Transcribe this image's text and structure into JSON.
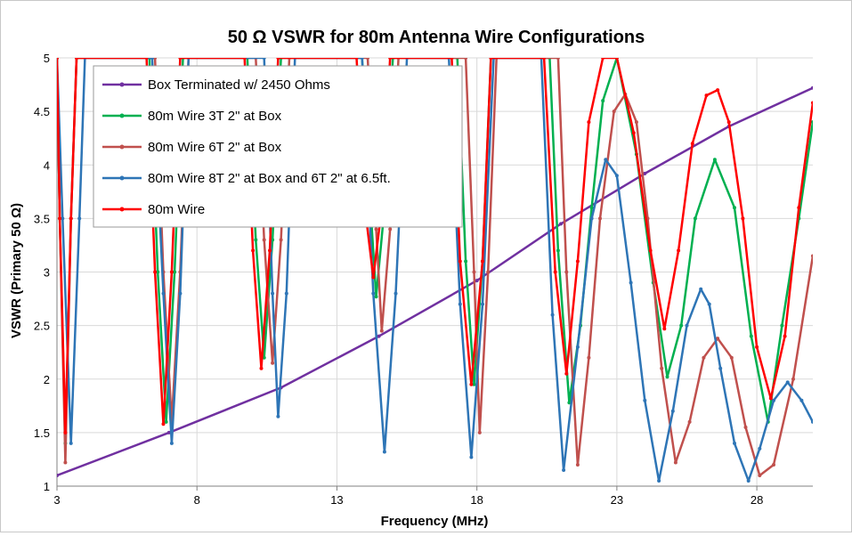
{
  "chart_data": {
    "type": "line",
    "title": "50 Ω VSWR for 80m Antenna Wire Configurations",
    "xlabel": "Frequency (MHz)",
    "ylabel": "VSWR  (Primary 50 Ω)",
    "xlim": [
      3,
      30
    ],
    "ylim": [
      1,
      5
    ],
    "x_ticks": [
      3,
      8,
      13,
      18,
      23,
      28
    ],
    "x_tick_labels": [
      "3",
      "8",
      "13",
      "18",
      "23",
      "28"
    ],
    "y_ticks": [
      1,
      1.5,
      2,
      2.5,
      3,
      3.5,
      4,
      4.5,
      5
    ],
    "y_tick_labels": [
      "1",
      "1.5",
      "2",
      "2.5",
      "3",
      "3.5",
      "4",
      "4.5",
      "5"
    ],
    "grid": true,
    "legend_position": "top-left",
    "series": [
      {
        "name": "Box Terminated w/ 2450 Ohms",
        "color": "#7030a0",
        "x": [
          3,
          7,
          11,
          14.5,
          18,
          21,
          24,
          27,
          30
        ],
        "y": [
          1.1,
          1.5,
          1.92,
          2.4,
          2.92,
          3.45,
          3.92,
          4.36,
          4.72
        ]
      },
      {
        "name": "80m Wire 3T 2\" at Box",
        "color": "#00b050",
        "x": [
          3,
          3.1,
          3.3,
          3.5,
          3.7,
          6.3,
          6.6,
          6.9,
          7.2,
          7.5,
          9.8,
          10.1,
          10.4,
          10.7,
          11,
          13.9,
          14.2,
          14.4,
          14.7,
          15,
          17.3,
          17.6,
          17.9,
          18.2,
          18.5,
          20.6,
          20.9,
          21.3,
          21.7,
          22.1,
          22.5,
          23,
          23.7,
          24.3,
          24.8,
          25.3,
          25.8,
          26.5,
          27.2,
          27.8,
          28.4,
          28.9,
          29.5,
          30
        ],
        "y": [
          5,
          3.5,
          1.4,
          3.5,
          5,
          5,
          3,
          1.6,
          3,
          5,
          5,
          3.3,
          2.2,
          3.3,
          5,
          5,
          3.6,
          2.77,
          3.6,
          5,
          5,
          3.1,
          1.95,
          3.1,
          5,
          5,
          3.2,
          1.78,
          2.5,
          3.6,
          4.6,
          5,
          4.1,
          2.9,
          2.02,
          2.5,
          3.5,
          4.05,
          3.6,
          2.4,
          1.6,
          2.5,
          3.5,
          4.4
        ]
      },
      {
        "name": "80m Wire 6T 2\" at Box",
        "color": "#c0504d",
        "x": [
          3,
          3.1,
          3.3,
          3.5,
          3.7,
          6.5,
          6.8,
          7.1,
          7.4,
          7.7,
          10.1,
          10.4,
          10.7,
          11,
          11.3,
          14.1,
          14.4,
          14.6,
          14.9,
          15.2,
          17.6,
          17.9,
          18.1,
          18.4,
          18.7,
          20.9,
          21.2,
          21.6,
          22,
          22.4,
          22.9,
          23.3,
          23.7,
          24.1,
          24.6,
          25.1,
          25.6,
          26.1,
          26.6,
          27.1,
          27.6,
          28.1,
          28.6,
          29.3,
          30
        ],
        "y": [
          5,
          3.5,
          1.22,
          3.5,
          5,
          5,
          3,
          1.6,
          3,
          5,
          5,
          3.3,
          2.15,
          3.3,
          5,
          5,
          3.4,
          2.45,
          3.4,
          5,
          5,
          3,
          1.5,
          3,
          5,
          5,
          3,
          1.2,
          2.2,
          3.5,
          4.5,
          4.66,
          4.4,
          3.5,
          2.1,
          1.22,
          1.6,
          2.2,
          2.38,
          2.2,
          1.55,
          1.1,
          1.2,
          2,
          3.15
        ]
      },
      {
        "name": "80m Wire 8T 2\" at Box and 6T 2\" at 6.5ft.",
        "color": "#2e75b6",
        "x": [
          3,
          3.2,
          3.5,
          3.8,
          4,
          6.4,
          6.8,
          7.1,
          7.4,
          7.7,
          10.4,
          10.7,
          10.9,
          11.2,
          11.5,
          13.9,
          14.3,
          14.7,
          15.1,
          15.5,
          17,
          17.4,
          17.8,
          18.2,
          18.6,
          20.3,
          20.7,
          21.1,
          21.6,
          22.1,
          22.6,
          23,
          23.5,
          24,
          24.5,
          25,
          25.5,
          26,
          26.3,
          26.7,
          27.2,
          27.7,
          28.1,
          28.6,
          29.1,
          29.6,
          30
        ],
        "y": [
          5,
          3.5,
          1.4,
          3.5,
          5,
          5,
          2.8,
          1.4,
          2.8,
          5,
          5,
          2.8,
          1.65,
          2.8,
          5,
          5,
          2.8,
          1.32,
          2.8,
          5,
          5,
          2.7,
          1.27,
          2.7,
          5,
          5,
          2.6,
          1.15,
          2.3,
          3.5,
          4.05,
          3.9,
          2.9,
          1.8,
          1.05,
          1.7,
          2.5,
          2.84,
          2.7,
          2.1,
          1.4,
          1.05,
          1.35,
          1.8,
          1.97,
          1.8,
          1.6
        ]
      },
      {
        "name": "80m Wire",
        "color": "#ff0000",
        "x": [
          3,
          3.1,
          3.3,
          3.5,
          3.7,
          6.2,
          6.5,
          6.8,
          7.1,
          7.4,
          9.7,
          10,
          10.3,
          10.6,
          10.9,
          13.7,
          14,
          14.3,
          14.6,
          14.9,
          17.1,
          17.4,
          17.8,
          18.2,
          18.5,
          20.4,
          20.8,
          21.2,
          21.6,
          22,
          22.5,
          23,
          23.6,
          24.2,
          24.7,
          25.2,
          25.7,
          26.2,
          26.6,
          27,
          27.5,
          28,
          28.5,
          29,
          29.5,
          30
        ],
        "y": [
          5,
          3.5,
          1.5,
          3.5,
          5,
          5,
          3,
          1.58,
          3,
          5,
          5,
          3.2,
          2.1,
          3.2,
          5,
          5,
          3.6,
          2.95,
          3.6,
          5,
          5,
          3.1,
          1.95,
          3.1,
          5,
          5,
          3,
          2.05,
          3.1,
          4.4,
          5,
          5,
          4.3,
          3.2,
          2.47,
          3.2,
          4.2,
          4.65,
          4.7,
          4.4,
          3.5,
          2.3,
          1.82,
          2.4,
          3.6,
          4.58
        ]
      }
    ]
  }
}
